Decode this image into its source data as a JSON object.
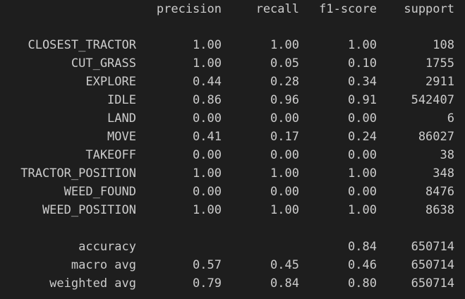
{
  "header": {
    "precision": "precision",
    "recall": "recall",
    "f1": "f1-score",
    "support": "support"
  },
  "rows": [
    {
      "label": "CLOSEST_TRACTOR",
      "precision": "1.00",
      "recall": "1.00",
      "f1": "1.00",
      "support": "108"
    },
    {
      "label": "CUT_GRASS",
      "precision": "1.00",
      "recall": "0.05",
      "f1": "0.10",
      "support": "1755"
    },
    {
      "label": "EXPLORE",
      "precision": "0.44",
      "recall": "0.28",
      "f1": "0.34",
      "support": "2911"
    },
    {
      "label": "IDLE",
      "precision": "0.86",
      "recall": "0.96",
      "f1": "0.91",
      "support": "542407"
    },
    {
      "label": "LAND",
      "precision": "0.00",
      "recall": "0.00",
      "f1": "0.00",
      "support": "6"
    },
    {
      "label": "MOVE",
      "precision": "0.41",
      "recall": "0.17",
      "f1": "0.24",
      "support": "86027"
    },
    {
      "label": "TAKEOFF",
      "precision": "0.00",
      "recall": "0.00",
      "f1": "0.00",
      "support": "38"
    },
    {
      "label": "TRACTOR_POSITION",
      "precision": "1.00",
      "recall": "1.00",
      "f1": "1.00",
      "support": "348"
    },
    {
      "label": "WEED_FOUND",
      "precision": "0.00",
      "recall": "0.00",
      "f1": "0.00",
      "support": "8476"
    },
    {
      "label": "WEED_POSITION",
      "precision": "1.00",
      "recall": "1.00",
      "f1": "1.00",
      "support": "8638"
    }
  ],
  "summary": [
    {
      "label": "accuracy",
      "precision": "",
      "recall": "",
      "f1": "0.84",
      "support": "650714"
    },
    {
      "label": "macro avg",
      "precision": "0.57",
      "recall": "0.45",
      "f1": "0.46",
      "support": "650714"
    },
    {
      "label": "weighted avg",
      "precision": "0.79",
      "recall": "0.84",
      "f1": "0.80",
      "support": "650714"
    }
  ]
}
